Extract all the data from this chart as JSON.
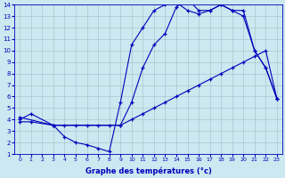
{
  "xlabel": "Graphe des températures (°c)",
  "xlim": [
    -0.5,
    23.5
  ],
  "ylim": [
    1,
    14
  ],
  "xticks": [
    0,
    1,
    2,
    3,
    4,
    5,
    6,
    7,
    8,
    9,
    10,
    11,
    12,
    13,
    14,
    15,
    16,
    17,
    18,
    19,
    20,
    21,
    22,
    23
  ],
  "yticks": [
    1,
    2,
    3,
    4,
    5,
    6,
    7,
    8,
    9,
    10,
    11,
    12,
    13,
    14
  ],
  "bg_color": "#cce8f0",
  "line_color": "#0000bb",
  "grid_color": "#aabbc8",
  "line1_x": [
    0,
    1,
    3,
    4,
    5,
    6,
    7,
    8,
    9,
    10,
    11,
    12,
    13,
    14,
    15,
    16,
    17,
    18,
    19,
    20,
    21,
    22,
    23
  ],
  "line1_y": [
    4,
    4.5,
    3.5,
    2.5,
    2.0,
    1.8,
    1.5,
    1.2,
    5.5,
    10.5,
    12.0,
    13.5,
    14.0,
    14.2,
    13.5,
    13.2,
    13.5,
    14.0,
    13.5,
    13.0,
    10.0,
    8.5,
    5.8
  ],
  "line2_x": [
    0,
    3,
    9,
    10,
    11,
    12,
    13,
    14,
    15,
    16,
    17,
    18,
    19,
    20,
    21,
    22,
    23
  ],
  "line2_y": [
    4.2,
    3.5,
    3.5,
    5.5,
    8.5,
    10.5,
    11.5,
    13.8,
    14.5,
    13.5,
    13.5,
    14.0,
    13.5,
    13.5,
    10.0,
    8.5,
    5.8
  ],
  "line3_x": [
    0,
    1,
    3,
    4,
    5,
    6,
    7,
    8,
    9,
    10,
    11,
    12,
    13,
    14,
    15,
    16,
    17,
    18,
    19,
    20,
    21,
    22,
    23
  ],
  "line3_y": [
    3.8,
    3.8,
    3.5,
    3.5,
    3.5,
    3.5,
    3.5,
    3.5,
    3.5,
    4.0,
    4.5,
    5.0,
    5.5,
    6.0,
    6.5,
    7.0,
    7.5,
    8.0,
    8.5,
    9.0,
    9.5,
    10.0,
    5.8
  ]
}
